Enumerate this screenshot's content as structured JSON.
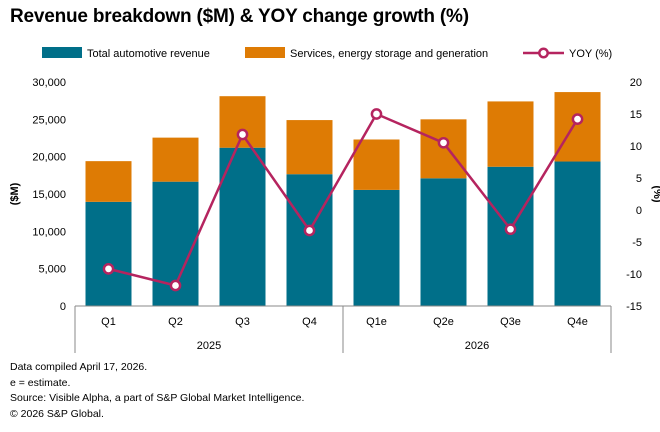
{
  "title": "Revenue breakdown ($M) & YOY change growth (%)",
  "colors": {
    "automotive": "#006f89",
    "services": "#de7b04",
    "yoy": "#b5245f",
    "axis": "#888888",
    "text": "#000000"
  },
  "chart_data": {
    "type": "bar",
    "stacked": true,
    "categories": [
      "Q1",
      "Q2",
      "Q3",
      "Q4",
      "Q1e",
      "Q2e",
      "Q3e",
      "Q4e"
    ],
    "groups": [
      {
        "label": "2025",
        "start": 0,
        "end": 3
      },
      {
        "label": "2026",
        "start": 4,
        "end": 7
      }
    ],
    "series": [
      {
        "name": "Total automotive revenue",
        "type": "bar",
        "axis": "left",
        "values": [
          13950,
          16650,
          21200,
          17650,
          15550,
          17100,
          18650,
          19350
        ]
      },
      {
        "name": "Services, energy storage and generation",
        "type": "bar",
        "axis": "left",
        "values": [
          5450,
          5900,
          6900,
          7250,
          6750,
          7900,
          8750,
          9300
        ]
      },
      {
        "name": "YOY (%)",
        "type": "line",
        "axis": "right",
        "values": [
          -9.2,
          -11.8,
          11.8,
          -3.2,
          15.0,
          10.5,
          -3.0,
          14.2
        ]
      }
    ],
    "ylabel": "($M)",
    "y2label": "(%)",
    "ylim": [
      0,
      30000
    ],
    "y2lim": [
      -15,
      20
    ],
    "yticks": [
      "0",
      "5,000",
      "10,000",
      "15,000",
      "20,000",
      "25,000",
      "30,000"
    ],
    "y2ticks": [
      "-15",
      "-10",
      "-5",
      "0",
      "5",
      "10",
      "15",
      "20"
    ],
    "legend_position": "top",
    "grid": false
  },
  "notes": [
    "Data compiled April 17, 2026.",
    "e = estimate.",
    "Source: Visible Alpha, a part of S&P Global Market Intelligence.",
    "© 2026 S&P Global."
  ]
}
